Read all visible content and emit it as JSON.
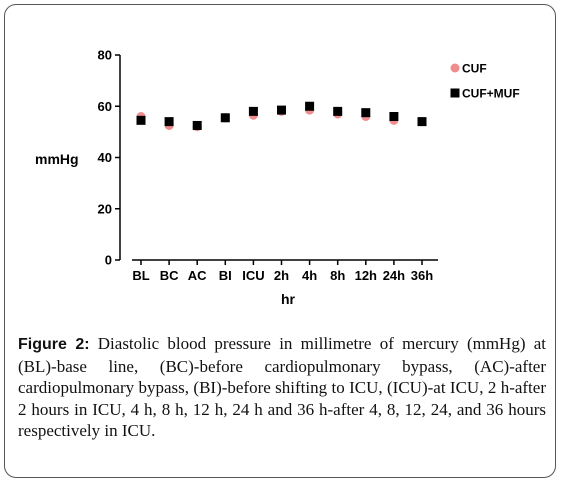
{
  "chart_data": {
    "type": "scatter",
    "ylabel": "mmHg",
    "xlabel": "hr",
    "ylim": [
      0,
      80
    ],
    "yticks": [
      0,
      20,
      40,
      60,
      80
    ],
    "categories": [
      "BL",
      "BC",
      "AC",
      "BI",
      "ICU",
      "2h",
      "4h",
      "8h",
      "12h",
      "24h",
      "36h"
    ],
    "series": [
      {
        "name": "CUF",
        "color": "#f08c8c",
        "marker": "circle",
        "values": [
          56,
          52.5,
          52,
          55.5,
          56.5,
          58,
          58.5,
          57,
          56,
          54.5,
          54
        ]
      },
      {
        "name": "CUF+MUF",
        "color": "#000000",
        "marker": "square",
        "values": [
          54.5,
          54,
          52.5,
          55.5,
          58,
          58.5,
          60,
          58,
          57.5,
          56,
          54
        ]
      }
    ],
    "legend": "top-right"
  },
  "caption": {
    "label": "Figure 2:",
    "text": " Diastolic blood pressure in millimetre of mercury (mmHg) at (BL)-base line, (BC)-before cardiopulmonary bypass, (AC)-after cardiopulmonary bypass, (BI)-before shifting to ICU, (ICU)-at ICU, 2 h-after 2 hours in ICU, 4 h, 8 h, 12 h, 24 h and 36 h-after 4, 8, 12, 24, and 36 hours respectively in ICU."
  }
}
